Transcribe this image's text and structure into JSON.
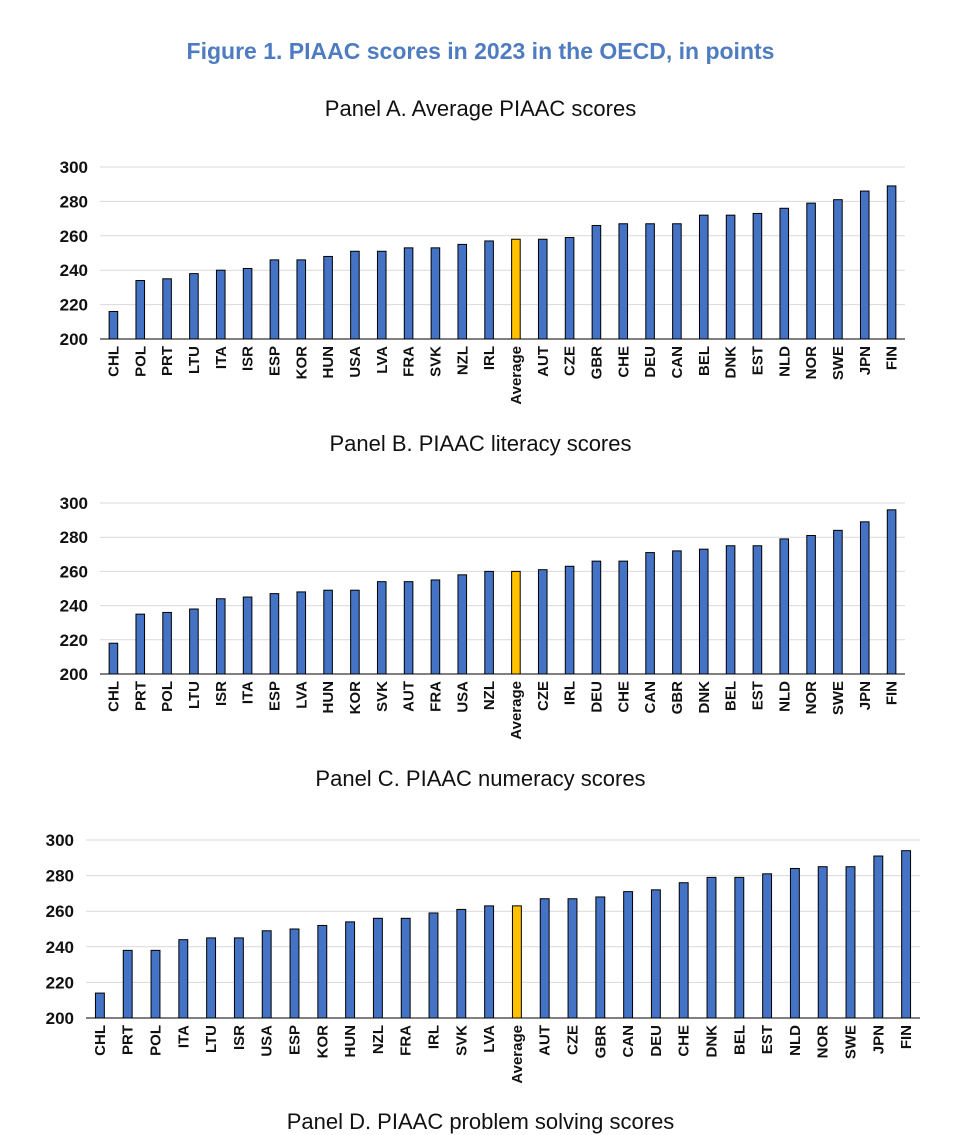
{
  "figure_title": "Figure 1. PIAAC scores in 2023 in the OECD, in points",
  "panels": [
    {
      "title": "Panel A. Average PIAAC scores"
    },
    {
      "title": "Panel B. PIAAC literacy scores"
    },
    {
      "title": "Panel C. PIAAC numeracy scores"
    },
    {
      "title": "Panel D. PIAAC problem solving scores"
    }
  ],
  "colors": {
    "bar": "#4472c4",
    "highlight": "#ffc000",
    "bar_border": "#000000"
  },
  "chart_data": [
    {
      "type": "bar",
      "title": "Panel A. Average PIAAC scores",
      "categories": [
        "CHL",
        "POL",
        "PRT",
        "LTU",
        "ITA",
        "ISR",
        "ESP",
        "KOR",
        "HUN",
        "USA",
        "LVA",
        "FRA",
        "SVK",
        "NZL",
        "IRL",
        "Average",
        "AUT",
        "CZE",
        "GBR",
        "CHE",
        "DEU",
        "CAN",
        "BEL",
        "DNK",
        "EST",
        "NLD",
        "NOR",
        "SWE",
        "JPN",
        "FIN"
      ],
      "values": [
        216,
        234,
        235,
        238,
        240,
        241,
        246,
        246,
        248,
        251,
        251,
        253,
        253,
        255,
        257,
        258,
        258,
        259,
        266,
        267,
        267,
        267,
        272,
        272,
        273,
        276,
        279,
        281,
        286,
        289
      ],
      "highlight": "Average",
      "ylim": [
        200,
        300
      ],
      "yticks": [
        200,
        220,
        240,
        260,
        280,
        300
      ],
      "grid": true,
      "legend": "none"
    },
    {
      "type": "bar",
      "title": "Panel B. PIAAC literacy scores",
      "categories": [
        "CHL",
        "PRT",
        "POL",
        "LTU",
        "ISR",
        "ITA",
        "ESP",
        "LVA",
        "HUN",
        "KOR",
        "SVK",
        "AUT",
        "FRA",
        "USA",
        "NZL",
        "Average",
        "CZE",
        "IRL",
        "DEU",
        "CHE",
        "CAN",
        "GBR",
        "DNK",
        "BEL",
        "EST",
        "NLD",
        "NOR",
        "SWE",
        "JPN",
        "FIN"
      ],
      "values": [
        218,
        235,
        236,
        238,
        244,
        245,
        247,
        248,
        249,
        249,
        254,
        254,
        255,
        258,
        260,
        260,
        261,
        263,
        266,
        266,
        271,
        272,
        273,
        275,
        275,
        279,
        281,
        284,
        289,
        296
      ],
      "highlight": "Average",
      "ylim": [
        200,
        300
      ],
      "yticks": [
        200,
        220,
        240,
        260,
        280,
        300
      ],
      "grid": true,
      "legend": "none"
    },
    {
      "type": "bar",
      "title": "Panel C. PIAAC numeracy scores",
      "categories": [
        "CHL",
        "PRT",
        "POL",
        "ITA",
        "LTU",
        "ISR",
        "USA",
        "ESP",
        "KOR",
        "HUN",
        "NZL",
        "FRA",
        "IRL",
        "SVK",
        "LVA",
        "Average",
        "AUT",
        "CZE",
        "GBR",
        "CAN",
        "DEU",
        "CHE",
        "DNK",
        "BEL",
        "EST",
        "NLD",
        "NOR",
        "SWE",
        "JPN",
        "FIN"
      ],
      "values": [
        214,
        238,
        238,
        244,
        245,
        245,
        249,
        250,
        252,
        254,
        256,
        256,
        259,
        261,
        263,
        263,
        267,
        267,
        268,
        271,
        272,
        276,
        279,
        279,
        281,
        284,
        285,
        285,
        291,
        294
      ],
      "highlight": "Average",
      "ylim": [
        200,
        300
      ],
      "yticks": [
        200,
        220,
        240,
        260,
        280,
        300
      ],
      "grid": true,
      "legend": "none"
    }
  ]
}
